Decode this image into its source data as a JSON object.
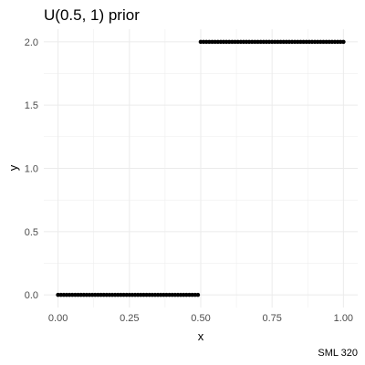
{
  "chart_data": {
    "type": "scatter",
    "title": "U(0.5, 1) prior",
    "xlabel": "x",
    "ylabel": "y",
    "caption": "SML 320",
    "xlim": [
      -0.05,
      1.05
    ],
    "ylim": [
      -0.1,
      2.1
    ],
    "x_ticks": [
      0.0,
      0.25,
      0.5,
      0.75,
      1.0
    ],
    "x_tick_labels": [
      "0.00",
      "0.25",
      "0.50",
      "0.75",
      "1.00"
    ],
    "y_ticks": [
      0.0,
      0.5,
      1.0,
      1.5,
      2.0
    ],
    "y_tick_labels": [
      "0.0",
      "0.5",
      "1.0",
      "1.5",
      "2.0"
    ],
    "grid": true,
    "legend": "none",
    "point_color": "#000000",
    "grid_color": "#ebebeb",
    "series": [
      {
        "x_from": 0.0,
        "x_to": 1.0,
        "x_step": 0.01,
        "rule": "y = 0 for x < 0.5; y = 2 for x >= 0.5"
      }
    ]
  }
}
